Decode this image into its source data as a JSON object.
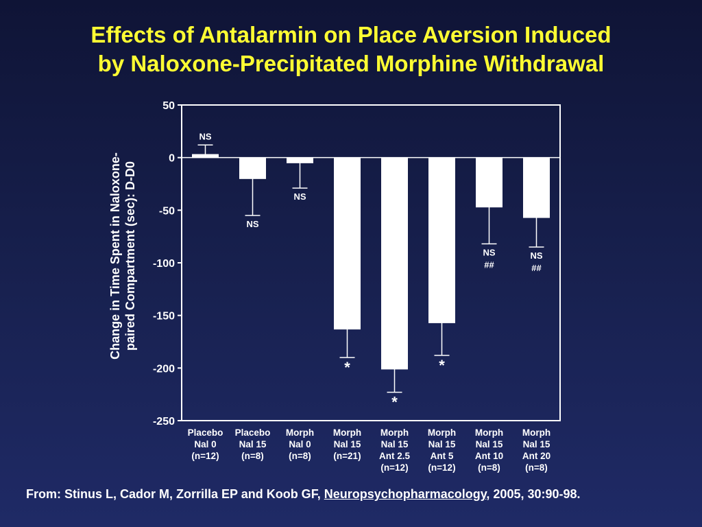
{
  "title": {
    "line1": "Effects of Antalarmin on Place Aversion Induced",
    "line2": "by Naloxone-Precipitated Morphine Withdrawal"
  },
  "citation": {
    "prefix": "From: Stinus L, Cador M, Zorrilla EP and Koob GF, ",
    "journal": "Neuropsychopharmacology",
    "suffix": ", 2005, 30:90-98."
  },
  "colors": {
    "background": "#182150",
    "title": "#ffff33",
    "text": "#ffffff",
    "bars": "#ffffff"
  },
  "chart_data": {
    "type": "bar",
    "ylabel": "Change in Time Spent in Naloxone-paired Compartment (sec): D-D0",
    "ylabel_lines": [
      "Change in Time Spent in Naloxone-",
      "paired Compartment (sec): D-D0"
    ],
    "xlabel": "",
    "ylim": [
      -250,
      50
    ],
    "yticks": [
      50,
      0,
      -50,
      -100,
      -150,
      -200,
      -250
    ],
    "grid": false,
    "categories": [
      [
        "Placebo",
        "Nal 0",
        "(n=12)"
      ],
      [
        "Placebo",
        "Nal 15",
        "(n=8)"
      ],
      [
        "Morph",
        "Nal 0",
        "(n=8)"
      ],
      [
        "Morph",
        "Nal 15",
        "(n=21)"
      ],
      [
        "Morph",
        "Nal 15",
        "Ant 2.5",
        "(n=12)"
      ],
      [
        "Morph",
        "Nal 15",
        "Ant 5",
        "(n=12)"
      ],
      [
        "Morph",
        "Nal 15",
        "Ant 10",
        "(n=8)"
      ],
      [
        "Morph",
        "Nal 15",
        "Ant 20",
        "(n=8)"
      ]
    ],
    "values": [
      3,
      -20,
      -5,
      -163,
      -201,
      -157,
      -47,
      -57
    ],
    "error": [
      9,
      35,
      24,
      27,
      22,
      31,
      35,
      28
    ],
    "annotations": [
      [
        "NS"
      ],
      [
        "NS"
      ],
      [
        "NS"
      ],
      [
        "*"
      ],
      [
        "*"
      ],
      [
        "*"
      ],
      [
        "NS",
        "##"
      ],
      [
        "NS",
        "##"
      ]
    ]
  }
}
